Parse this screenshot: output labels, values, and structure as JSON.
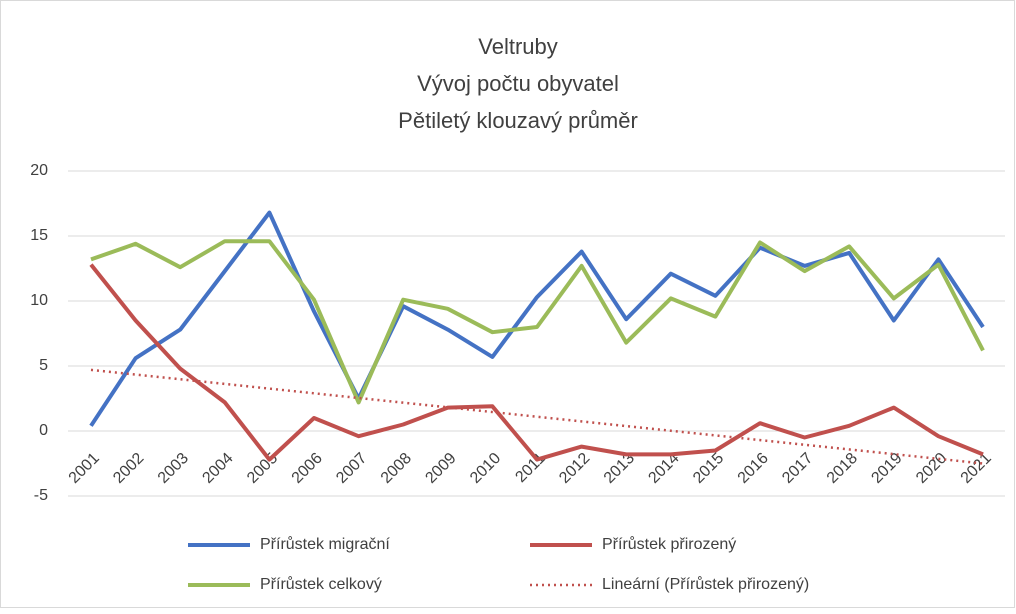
{
  "chart_data": {
    "type": "line",
    "title": [
      "Veltruby",
      "Vývoj počtu obyvatel",
      "Pětiletý klouzavý průměr"
    ],
    "categories": [
      "2001",
      "2002",
      "2003",
      "2004",
      "2005",
      "2006",
      "2007",
      "2008",
      "2009",
      "2010",
      "2011",
      "2012",
      "2013",
      "2014",
      "2015",
      "2016",
      "2017",
      "2018",
      "2019",
      "2020",
      "2021"
    ],
    "series": [
      {
        "name": "Přírůstek migrační",
        "color": "#4472c4",
        "values": [
          0.4,
          5.6,
          7.8,
          12.3,
          16.8,
          9.2,
          2.5,
          9.6,
          7.8,
          5.7,
          10.3,
          13.8,
          8.6,
          12.1,
          10.4,
          14.1,
          12.7,
          13.7,
          8.5,
          13.2,
          8.0
        ]
      },
      {
        "name": "Přírůstek přirozený",
        "color": "#c0504d",
        "values": [
          12.8,
          8.5,
          4.8,
          2.2,
          -2.2,
          1.0,
          -0.4,
          0.5,
          1.8,
          1.9,
          -2.2,
          -1.2,
          -1.8,
          -1.8,
          -1.5,
          0.6,
          -0.5,
          0.4,
          1.8,
          -0.4,
          -1.8
        ]
      },
      {
        "name": "Přírůstek celkový",
        "color": "#9bbb59",
        "values": [
          13.2,
          14.4,
          12.6,
          14.6,
          14.6,
          10.1,
          2.2,
          10.1,
          9.4,
          7.6,
          8.0,
          12.7,
          6.8,
          10.2,
          8.8,
          14.5,
          12.3,
          14.2,
          10.2,
          12.8,
          6.2
        ]
      }
    ],
    "trendline": {
      "name": "Lineární (Přírůstek přirozený)",
      "color": "#c0504d",
      "values": [
        4.7,
        -2.5
      ]
    },
    "ylim": [
      -5,
      20
    ],
    "yticks": [
      -5,
      0,
      5,
      10,
      15,
      20
    ],
    "grid": true
  }
}
